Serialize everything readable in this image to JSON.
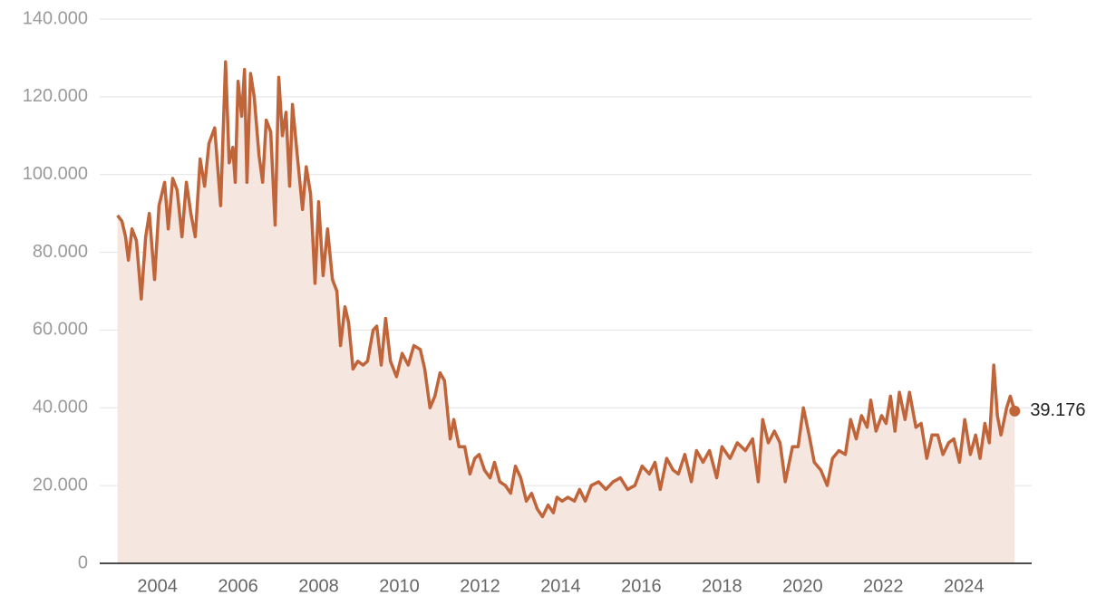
{
  "chart_data": {
    "type": "area",
    "x": [
      2003.01,
      2003.12,
      2003.21,
      2003.28,
      2003.37,
      2003.48,
      2003.6,
      2003.71,
      2003.8,
      2003.93,
      2004.04,
      2004.18,
      2004.27,
      2004.38,
      2004.49,
      2004.61,
      2004.72,
      2004.83,
      2004.94,
      2005.06,
      2005.17,
      2005.28,
      2005.42,
      2005.57,
      2005.69,
      2005.78,
      2005.87,
      2005.93,
      2006.0,
      2006.09,
      2006.16,
      2006.22,
      2006.31,
      2006.4,
      2006.52,
      2006.61,
      2006.7,
      2006.81,
      2006.92,
      2007.01,
      2007.1,
      2007.19,
      2007.28,
      2007.35,
      2007.46,
      2007.6,
      2007.69,
      2007.8,
      2007.91,
      2008.0,
      2008.11,
      2008.22,
      2008.34,
      2008.45,
      2008.54,
      2008.65,
      2008.74,
      2008.85,
      2008.97,
      2009.1,
      2009.21,
      2009.35,
      2009.44,
      2009.55,
      2009.66,
      2009.78,
      2009.93,
      2010.07,
      2010.22,
      2010.36,
      2010.52,
      2010.63,
      2010.76,
      2010.88,
      2011.01,
      2011.12,
      2011.26,
      2011.35,
      2011.48,
      2011.62,
      2011.75,
      2011.87,
      2011.98,
      2012.11,
      2012.25,
      2012.36,
      2012.49,
      2012.63,
      2012.76,
      2012.88,
      2013.01,
      2013.15,
      2013.28,
      2013.42,
      2013.55,
      2013.69,
      2013.82,
      2013.91,
      2014.04,
      2014.18,
      2014.34,
      2014.47,
      2014.61,
      2014.76,
      2014.94,
      2015.12,
      2015.3,
      2015.48,
      2015.66,
      2015.84,
      2016.02,
      2016.2,
      2016.34,
      2016.47,
      2016.63,
      2016.79,
      2016.92,
      2017.08,
      2017.24,
      2017.37,
      2017.53,
      2017.69,
      2017.87,
      2018.0,
      2018.2,
      2018.38,
      2018.58,
      2018.76,
      2018.9,
      2019.01,
      2019.15,
      2019.3,
      2019.44,
      2019.57,
      2019.75,
      2019.89,
      2020.02,
      2020.16,
      2020.29,
      2020.45,
      2020.61,
      2020.74,
      2020.9,
      2021.06,
      2021.19,
      2021.33,
      2021.46,
      2021.6,
      2021.69,
      2021.82,
      2021.96,
      2022.07,
      2022.18,
      2022.29,
      2022.4,
      2022.54,
      2022.65,
      2022.81,
      2022.94,
      2023.08,
      2023.21,
      2023.35,
      2023.48,
      2023.62,
      2023.75,
      2023.89,
      2024.02,
      2024.16,
      2024.29,
      2024.4,
      2024.52,
      2024.63,
      2024.74,
      2024.83,
      2024.92,
      2025.06,
      2025.15,
      2025.26
    ],
    "values": [
      89.5,
      88,
      84,
      78,
      86,
      83,
      68,
      84,
      90,
      73,
      92,
      98,
      86,
      99,
      96,
      84,
      98,
      90,
      84,
      104,
      97,
      108,
      112,
      92,
      129,
      103,
      107,
      98,
      124,
      115,
      127,
      98,
      126,
      120,
      105,
      98,
      114,
      111,
      87,
      125,
      110,
      116,
      97,
      118,
      106,
      91,
      102,
      95,
      72,
      93,
      74,
      86,
      73,
      70,
      56,
      66,
      62,
      50,
      52,
      51,
      52,
      60,
      61,
      51,
      63,
      52,
      48,
      54,
      51,
      56,
      55,
      50,
      40,
      43,
      49,
      47,
      32,
      37,
      30,
      30,
      23,
      27,
      28,
      24,
      22,
      26,
      21,
      20,
      18,
      25,
      22,
      16,
      18,
      14,
      12,
      15,
      13,
      17,
      16,
      17,
      16,
      19,
      16,
      20,
      21,
      19,
      21,
      22,
      19,
      20,
      25,
      23,
      26,
      19,
      27,
      24,
      23,
      28,
      21,
      29,
      26,
      29,
      22,
      30,
      27,
      31,
      29,
      32,
      21,
      37,
      31,
      34,
      31,
      21,
      30,
      30,
      40,
      33,
      26,
      24,
      20,
      27,
      29,
      28,
      37,
      32,
      38,
      35,
      42,
      34,
      38,
      36,
      43,
      34,
      44,
      37,
      44,
      35,
      36,
      27,
      33,
      33,
      28,
      31,
      32,
      26,
      37,
      28,
      33,
      27,
      36,
      31,
      51,
      38,
      33,
      40,
      43,
      39.176
    ],
    "color": "#c0643a",
    "fill": "#f6e6e0",
    "xlim": [
      2002.57,
      2025.68
    ],
    "xticks": [
      2004,
      2006,
      2008,
      2010,
      2012,
      2014,
      2016,
      2018,
      2020,
      2022,
      2024
    ],
    "ylim": [
      0,
      140
    ],
    "yticks": [
      0,
      {
        "value": 20,
        "label": "20.000"
      },
      {
        "value": 40,
        "label": "40.000"
      },
      {
        "value": 60,
        "label": "60.000"
      },
      {
        "value": 80,
        "label": "80.000"
      },
      {
        "value": 100,
        "label": "100.000"
      },
      {
        "value": 120,
        "label": "120.000"
      },
      {
        "value": 140,
        "label": "140.000"
      }
    ],
    "grid": true
  }
}
